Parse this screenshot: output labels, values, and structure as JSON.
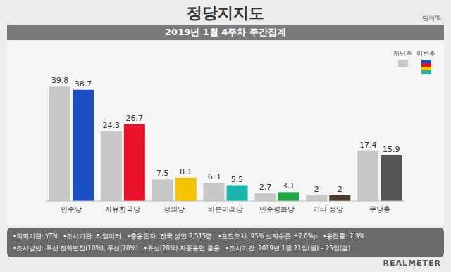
{
  "chart_data": {
    "type": "bar",
    "title": "정당지지도",
    "subtitle": "2019년 1월 4주차 주간집계",
    "unit": "단위%",
    "categories": [
      "민주당",
      "자유한국당",
      "정의당",
      "바른미래당",
      "민주평화당",
      "기타 정당",
      "무당층"
    ],
    "series": [
      {
        "name": "지난주",
        "color": "#c8c8c8",
        "values": [
          39.8,
          24.3,
          7.5,
          6.3,
          2.7,
          2.0,
          17.4
        ]
      },
      {
        "name": "이번주",
        "colors": [
          "#1a4fc4",
          "#e8132b",
          "#f5c400",
          "#1cb5ad",
          "#21a845",
          "#4a3b2a",
          "#555555"
        ],
        "values": [
          38.7,
          26.7,
          8.1,
          5.5,
          3.1,
          2.0,
          15.9
        ]
      }
    ],
    "ylim": [
      0,
      45
    ],
    "data_labels": true,
    "tick_labels": "x",
    "legend": "top-right",
    "annotations": [
      [
        "•의뢰기관: YTN",
        "•조사기관: 리얼미터",
        "•총응답자: 전국 성인 2,515명",
        "•표집오차: 95% 신뢰수준 ±2.0%p",
        "•응답률: 7.3%"
      ],
      [
        "•조사방법: 무선 전화면접(10%), 무선(70%)",
        "•유선(20%) 자동응답 혼용",
        "•조사기간: 2019년 1월 21일(월) – 25일(금)"
      ]
    ],
    "source": "REALMETER"
  }
}
